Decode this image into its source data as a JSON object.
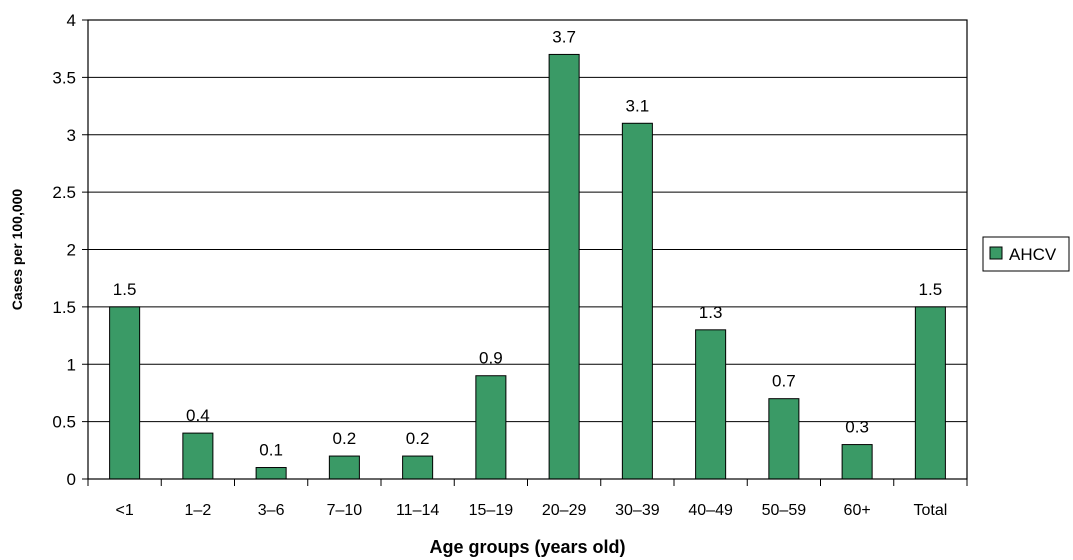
{
  "chart_data": {
    "type": "bar",
    "categories": [
      "<1",
      "1–2",
      "3–6",
      "7–10",
      "11–14",
      "15–19",
      "20–29",
      "30–39",
      "40–49",
      "50–59",
      "60+",
      "Total"
    ],
    "series": [
      {
        "name": "AHCV",
        "values": [
          1.5,
          0.4,
          0.1,
          0.2,
          0.2,
          0.9,
          3.7,
          3.1,
          1.3,
          0.7,
          0.3,
          1.5
        ]
      }
    ],
    "data_labels": [
      "1.5",
      "0.4",
      "0.1",
      "0.2",
      "0.2",
      "0.9",
      "3.7",
      "3.1",
      "1.3",
      "0.7",
      "0.3",
      "1.5"
    ],
    "xlabel": "Age groups (years old)",
    "ylabel": "Cases per 100,000",
    "ylim": [
      0,
      4
    ],
    "yticks": [
      "0",
      "0.5",
      "1",
      "1.5",
      "2",
      "2.5",
      "3",
      "3.5",
      "4"
    ],
    "grid": true,
    "legend": "right",
    "colors": {
      "bar": "#3a9a66",
      "bar_border": "#000000",
      "grid": "#000000"
    }
  }
}
